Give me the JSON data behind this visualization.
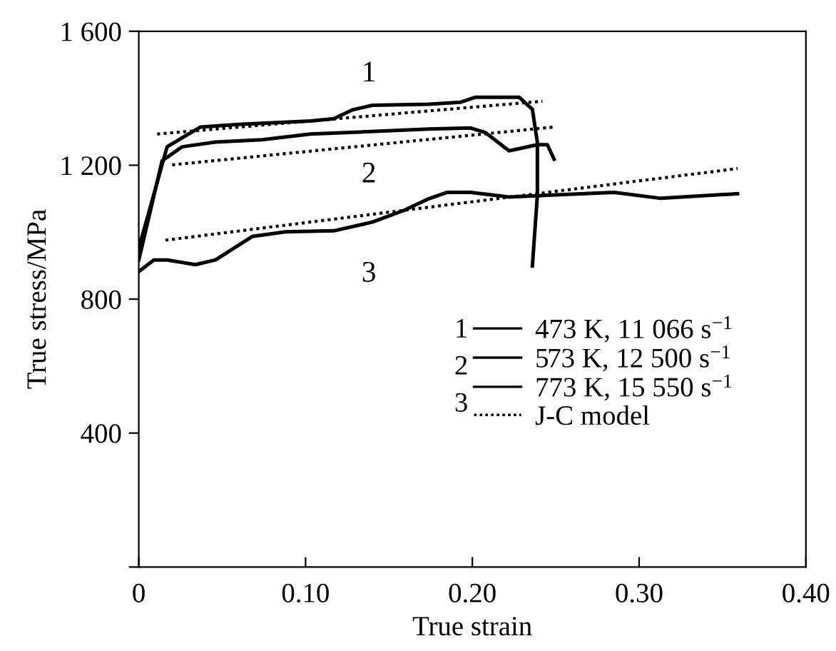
{
  "chart_data": {
    "type": "line",
    "xlabel": "True strain",
    "ylabel": "True stress/MPa",
    "xlim": [
      0,
      0.4
    ],
    "ylim": [
      0,
      1600
    ],
    "xticks": [
      {
        "value": 0,
        "label": "0"
      },
      {
        "value": 0.1,
        "label": "0.10"
      },
      {
        "value": 0.2,
        "label": "0.20"
      },
      {
        "value": 0.3,
        "label": "0.30"
      },
      {
        "value": 0.4,
        "label": "0.40"
      }
    ],
    "yticks": [
      {
        "value": 0,
        "label": null
      },
      400,
      800,
      {
        "value": 1200,
        "label": "1 200"
      },
      {
        "value": 1600,
        "label": "1 600"
      }
    ],
    "legend": "center right",
    "grid": false,
    "marker": "none",
    "series": [
      {
        "name": "473 K, 11 066 s$^{−1}$",
        "color": "#000000",
        "line_style": "solid",
        "x": [
          0,
          0.017,
          0.037,
          0.06,
          0.103,
          0.117,
          0.128,
          0.14,
          0.174,
          0.193,
          0.202,
          0.228,
          0.236,
          0.239,
          0.239,
          0.236
        ],
        "values": [
          952,
          1255,
          1314,
          1322,
          1332,
          1339,
          1365,
          1379,
          1382,
          1388,
          1403,
          1403,
          1367,
          1268,
          1112,
          899
        ]
      },
      {
        "name": "573 K, 12 500 s$^{−1}$",
        "color": "#000000",
        "line_style": "solid",
        "x": [
          0,
          0.014,
          0.026,
          0.046,
          0.074,
          0.103,
          0.174,
          0.199,
          0.208,
          0.222,
          0.239,
          0.245,
          0.249
        ],
        "values": [
          917,
          1213,
          1255,
          1269,
          1276,
          1293,
          1308,
          1311,
          1297,
          1243,
          1261,
          1261,
          1218
        ]
      },
      {
        "name": "773 K, 15 550 s$^{−1}$",
        "color": "#000000",
        "line_style": "solid",
        "x": [
          0,
          0.009,
          0.017,
          0.034,
          0.046,
          0.068,
          0.088,
          0.117,
          0.14,
          0.159,
          0.174,
          0.185,
          0.199,
          0.222,
          0.285,
          0.313,
          0.359
        ],
        "values": [
          882,
          917,
          917,
          903,
          917,
          987,
          1001,
          1004,
          1030,
          1065,
          1100,
          1119,
          1119,
          1105,
          1119,
          1101,
          1115
        ]
      },
      {
        "name": "J-C model",
        "color": "#000000",
        "line_style": "dotted",
        "x": [
          0.011,
          0.242
        ],
        "values": [
          1293,
          1391
        ]
      },
      {
        "color": "#000000",
        "line_style": "dotted",
        "x": [
          0.02,
          0.249
        ],
        "values": [
          1201,
          1314
        ]
      },
      {
        "color": "#000000",
        "line_style": "dotted",
        "x": [
          0.016,
          0.359
        ],
        "values": [
          976,
          1190
        ]
      }
    ],
    "annotations": [
      "1",
      "2",
      "3"
    ]
  }
}
